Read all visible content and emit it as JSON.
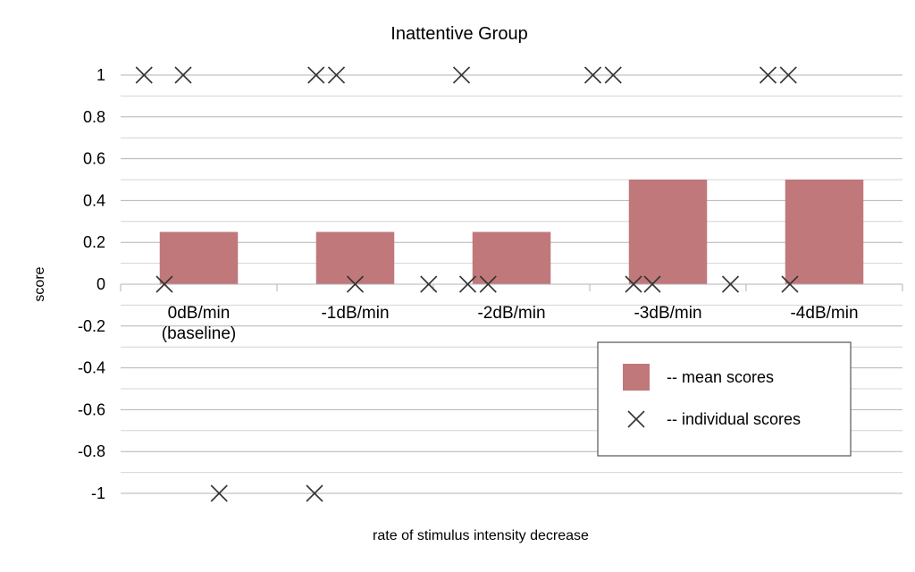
{
  "chart_data": {
    "type": "bar",
    "title": "Inattentive Group",
    "xlabel": "rate of stimulus intensity decrease",
    "ylabel": "score",
    "ylim": [
      -1,
      1
    ],
    "yticks": [
      1,
      0.8,
      0.6,
      0.4,
      0.2,
      0,
      -0.2,
      -0.4,
      -0.6,
      -0.8,
      -1
    ],
    "ytick_labels": [
      "1",
      "0.8",
      "0.6",
      "0.4",
      "0.2",
      "0",
      "-0.2",
      "-0.4",
      "-0.6",
      "-0.8",
      "-1"
    ],
    "grid": true,
    "categories": [
      [
        "0dB/min",
        "(baseline)"
      ],
      [
        "-1dB/min"
      ],
      [
        "-2dB/min"
      ],
      [
        "-3dB/min"
      ],
      [
        "-4dB/min"
      ]
    ],
    "series": [
      {
        "name": "-- mean scores",
        "kind": "bar",
        "color": "#c0787b",
        "values": [
          0.25,
          0.25,
          0.25,
          0.5,
          0.5
        ]
      },
      {
        "name": "-- individual scores",
        "kind": "marker",
        "marker": "x",
        "color": "#333333",
        "points": [
          {
            "x": 0.15,
            "y": 1
          },
          {
            "x": 0.4,
            "y": 1
          },
          {
            "x": 0.28,
            "y": 0
          },
          {
            "x": 0.63,
            "y": -1
          },
          {
            "x": 1.25,
            "y": 1
          },
          {
            "x": 1.38,
            "y": 1
          },
          {
            "x": 1.5,
            "y": 0
          },
          {
            "x": 1.24,
            "y": -1
          },
          {
            "x": 2.18,
            "y": 1
          },
          {
            "x": 1.97,
            "y": 0
          },
          {
            "x": 2.22,
            "y": 0
          },
          {
            "x": 2.35,
            "y": 0
          },
          {
            "x": 3.02,
            "y": 1
          },
          {
            "x": 3.15,
            "y": 1
          },
          {
            "x": 3.28,
            "y": 0
          },
          {
            "x": 3.4,
            "y": 0
          },
          {
            "x": 4.14,
            "y": 1
          },
          {
            "x": 4.27,
            "y": 1
          },
          {
            "x": 3.9,
            "y": 0
          },
          {
            "x": 4.28,
            "y": 0
          }
        ]
      }
    ],
    "legend": {
      "placement": "bottom-right",
      "entries": [
        "-- mean scores",
        "-- individual scores"
      ]
    }
  }
}
